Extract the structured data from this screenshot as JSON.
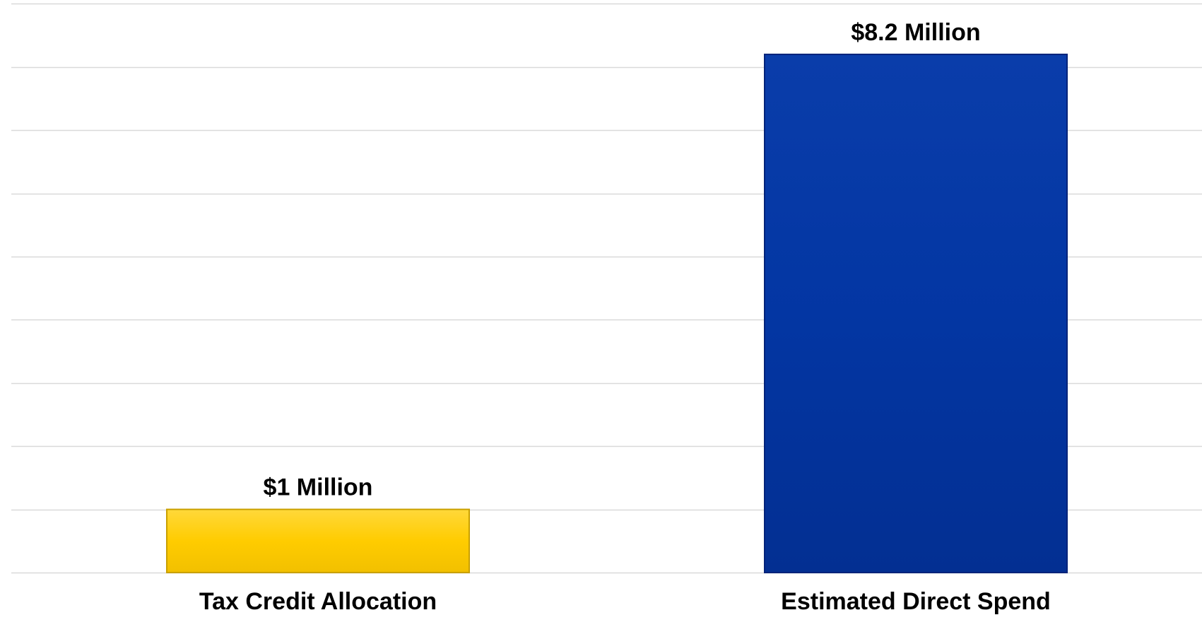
{
  "chart_data": {
    "type": "bar",
    "categories": [
      "Tax Credit Allocation",
      "Estimated Direct Spend"
    ],
    "values": [
      1,
      8.2
    ],
    "data_labels": [
      "$1 Million",
      "$8.2 Million"
    ],
    "ylim": [
      0,
      9
    ],
    "grid": true,
    "colors": {
      "Tax Credit Allocation": {
        "fill": "#FFCC00",
        "edge": "#C9A000"
      },
      "Estimated Direct Spend": {
        "fill": "#0336A3",
        "edge": "#02237A"
      },
      "gridline": "#D9D9D9",
      "text": "#000000"
    }
  }
}
